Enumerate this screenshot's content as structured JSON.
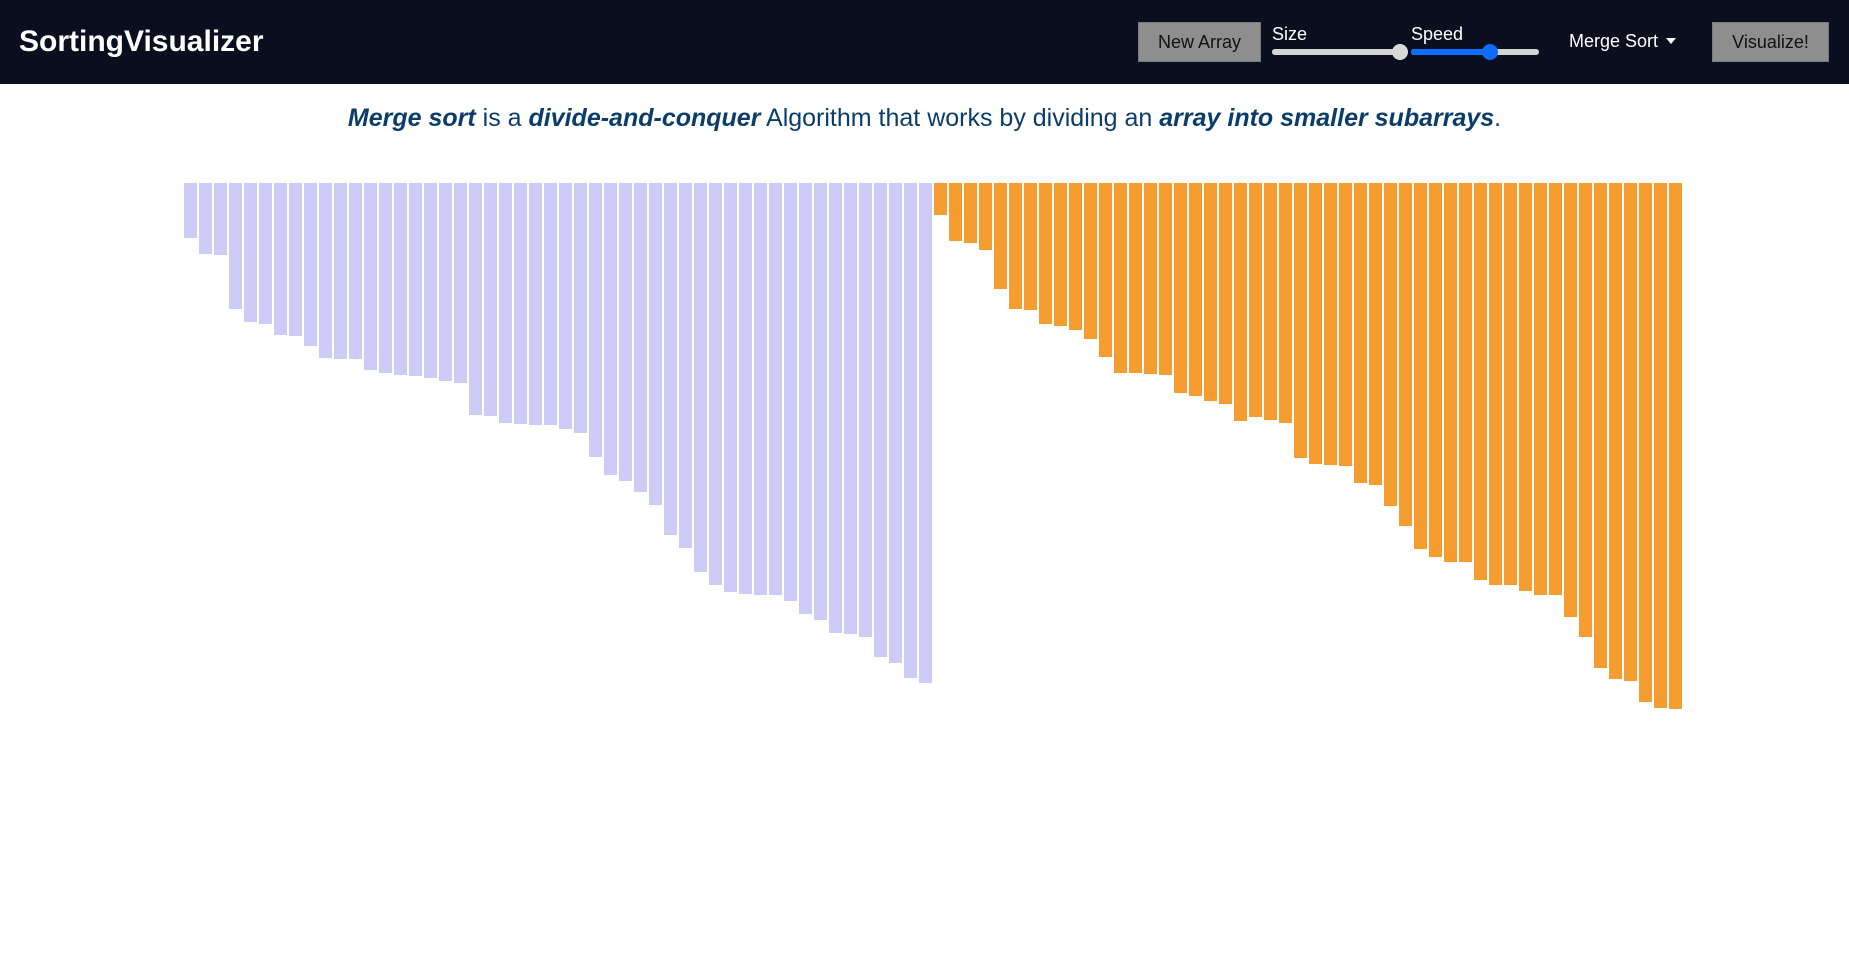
{
  "navbar": {
    "brand": "SortingVisualizer",
    "new_array_label": "New Array",
    "size_label": "Size",
    "speed_label": "Speed",
    "size_value": 1.0,
    "speed_value": 0.62,
    "algorithm": "Merge Sort",
    "visualize_label": "Visualize!"
  },
  "description": {
    "part1": "Merge sort",
    "part2": " is a ",
    "part3": "divide-and-conquer",
    "part4": " Algorithm that works by dividing an ",
    "part5": "array into smaller subarrays",
    "part6": "."
  },
  "colors": {
    "left_half": "#ccccf7",
    "right_half": "#f59d31"
  },
  "chart_data": {
    "type": "bar",
    "note_orientation": "bars hang downward from a common top line",
    "values": [
      55,
      71,
      72,
      126,
      139,
      141,
      152,
      153,
      163,
      175,
      176,
      176,
      187,
      190,
      192,
      193,
      195,
      198,
      200,
      232,
      233,
      240,
      241,
      242,
      242,
      246,
      250,
      274,
      292,
      298,
      309,
      322,
      352,
      365,
      389,
      402,
      409,
      411,
      412,
      412,
      418,
      431,
      437,
      450,
      451,
      454,
      474,
      480,
      495,
      500,
      32,
      58,
      60,
      67,
      106,
      126,
      127,
      141,
      143,
      147,
      156,
      174,
      190,
      190,
      191,
      192,
      210,
      213,
      218,
      221,
      238,
      234,
      237,
      240,
      275,
      281,
      282,
      283,
      300,
      302,
      323,
      343,
      366,
      374,
      379,
      379,
      397,
      402,
      402,
      408,
      412,
      412,
      434,
      454,
      485,
      496,
      498,
      519,
      525,
      526
    ]
  }
}
